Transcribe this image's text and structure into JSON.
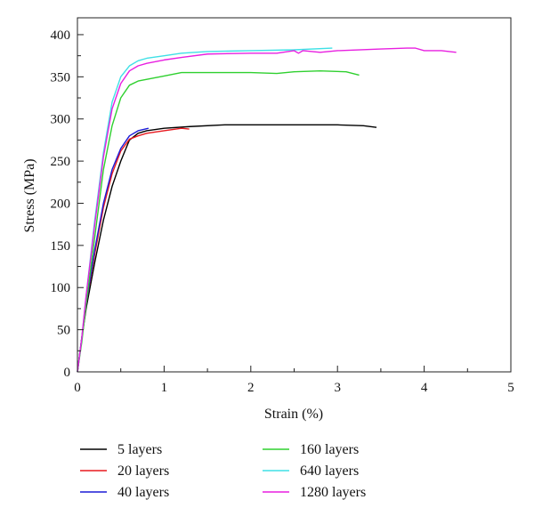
{
  "chart_data": {
    "type": "line",
    "xlabel": "Strain (%)",
    "ylabel": "Stress (MPa)",
    "xlim": [
      0,
      5
    ],
    "ylim": [
      0,
      420
    ],
    "xticks": [
      0,
      1,
      2,
      3,
      4,
      5
    ],
    "yticks": [
      0,
      50,
      100,
      150,
      200,
      250,
      300,
      350,
      400
    ],
    "legend_placement": "bottom, two columns",
    "grid": false,
    "series": [
      {
        "name": "5 layers",
        "color": "#000000",
        "points": [
          [
            0,
            0
          ],
          [
            0.05,
            40
          ],
          [
            0.1,
            75
          ],
          [
            0.2,
            130
          ],
          [
            0.3,
            180
          ],
          [
            0.4,
            220
          ],
          [
            0.5,
            250
          ],
          [
            0.6,
            275
          ],
          [
            0.7,
            283
          ],
          [
            0.8,
            286
          ],
          [
            1.0,
            289
          ],
          [
            1.3,
            291
          ],
          [
            1.7,
            293
          ],
          [
            2.0,
            293
          ],
          [
            2.5,
            293
          ],
          [
            3.0,
            293
          ],
          [
            3.3,
            292
          ],
          [
            3.45,
            290
          ]
        ]
      },
      {
        "name": "20 layers",
        "color": "#e8191f",
        "points": [
          [
            0,
            0
          ],
          [
            0.05,
            40
          ],
          [
            0.1,
            80
          ],
          [
            0.2,
            140
          ],
          [
            0.3,
            195
          ],
          [
            0.4,
            235
          ],
          [
            0.5,
            262
          ],
          [
            0.6,
            276
          ],
          [
            0.7,
            280
          ],
          [
            0.8,
            283
          ],
          [
            1.0,
            286
          ],
          [
            1.2,
            289
          ],
          [
            1.29,
            288
          ]
        ]
      },
      {
        "name": "40 layers",
        "color": "#1b1bd6",
        "points": [
          [
            0,
            0
          ],
          [
            0.05,
            40
          ],
          [
            0.1,
            80
          ],
          [
            0.2,
            145
          ],
          [
            0.3,
            200
          ],
          [
            0.4,
            240
          ],
          [
            0.5,
            265
          ],
          [
            0.6,
            280
          ],
          [
            0.7,
            286
          ],
          [
            0.82,
            289
          ]
        ]
      },
      {
        "name": "160 layers",
        "color": "#2fd02f",
        "points": [
          [
            0,
            0
          ],
          [
            0.05,
            35
          ],
          [
            0.1,
            80
          ],
          [
            0.2,
            160
          ],
          [
            0.3,
            240
          ],
          [
            0.4,
            292
          ],
          [
            0.5,
            325
          ],
          [
            0.6,
            340
          ],
          [
            0.7,
            345
          ],
          [
            0.9,
            349
          ],
          [
            1.0,
            351
          ],
          [
            1.2,
            355
          ],
          [
            1.5,
            355
          ],
          [
            2.0,
            355
          ],
          [
            2.3,
            354
          ],
          [
            2.5,
            356
          ],
          [
            2.8,
            357
          ],
          [
            3.1,
            356
          ],
          [
            3.25,
            352
          ]
        ]
      },
      {
        "name": "640 layers",
        "color": "#3fe0e6",
        "points": [
          [
            0,
            0
          ],
          [
            0.05,
            40
          ],
          [
            0.1,
            90
          ],
          [
            0.2,
            180
          ],
          [
            0.3,
            260
          ],
          [
            0.4,
            320
          ],
          [
            0.5,
            350
          ],
          [
            0.6,
            363
          ],
          [
            0.7,
            369
          ],
          [
            0.8,
            372
          ],
          [
            1.0,
            375
          ],
          [
            1.2,
            378
          ],
          [
            1.5,
            380
          ],
          [
            2.0,
            381
          ],
          [
            2.5,
            382
          ],
          [
            2.94,
            384
          ]
        ]
      },
      {
        "name": "1280 layers",
        "color": "#e81fe0",
        "points": [
          [
            0,
            0
          ],
          [
            0.05,
            40
          ],
          [
            0.1,
            90
          ],
          [
            0.2,
            175
          ],
          [
            0.3,
            255
          ],
          [
            0.4,
            312
          ],
          [
            0.5,
            342
          ],
          [
            0.6,
            357
          ],
          [
            0.7,
            363
          ],
          [
            0.8,
            366
          ],
          [
            1.0,
            370
          ],
          [
            1.2,
            373
          ],
          [
            1.5,
            377
          ],
          [
            2.0,
            378
          ],
          [
            2.3,
            378
          ],
          [
            2.5,
            381
          ],
          [
            2.55,
            378
          ],
          [
            2.6,
            381
          ],
          [
            2.8,
            379
          ],
          [
            3.0,
            381
          ],
          [
            3.5,
            383
          ],
          [
            3.8,
            384
          ],
          [
            3.9,
            384
          ],
          [
            4.0,
            381
          ],
          [
            4.2,
            381
          ],
          [
            4.37,
            379
          ]
        ]
      }
    ]
  }
}
